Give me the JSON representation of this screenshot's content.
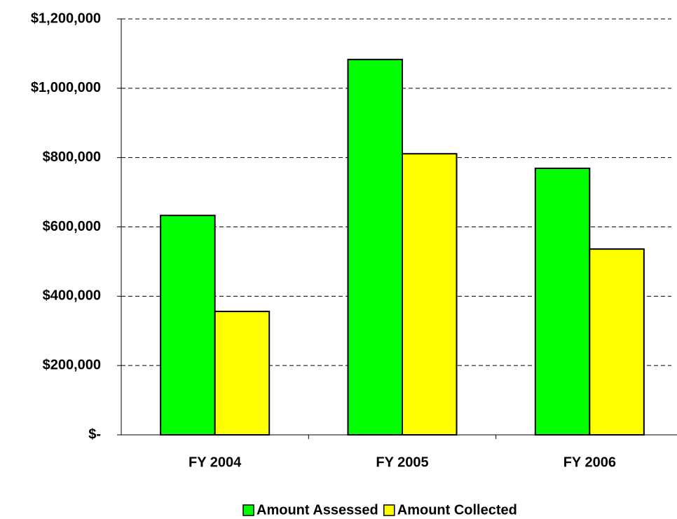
{
  "chart_data": {
    "type": "bar",
    "categories": [
      "FY 2004",
      "FY 2005",
      "FY 2006"
    ],
    "series": [
      {
        "name": "Amount Assessed",
        "color": "#00ff00",
        "values": [
          633000,
          1083000,
          769000
        ]
      },
      {
        "name": "Amount Collected",
        "color": "#ffff00",
        "values": [
          356000,
          811000,
          536000
        ]
      }
    ],
    "ylim": [
      0,
      1200000
    ],
    "yticks": [
      {
        "value": 0,
        "label": "$-"
      },
      {
        "value": 200000,
        "label": "$200,000"
      },
      {
        "value": 400000,
        "label": "$400,000"
      },
      {
        "value": 600000,
        "label": "$600,000"
      },
      {
        "value": 800000,
        "label": "$800,000"
      },
      {
        "value": 1000000,
        "label": "$1,000,000"
      },
      {
        "value": 1200000,
        "label": "$1,200,000"
      }
    ],
    "grid": true,
    "legend": "bottom"
  }
}
